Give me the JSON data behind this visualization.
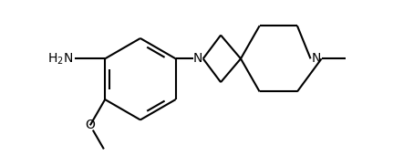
{
  "background_color": "#ffffff",
  "line_color": "#000000",
  "line_width": 1.5,
  "font_size": 10,
  "figsize": [
    4.54,
    1.82
  ],
  "dpi": 100,
  "xlim": [
    -1.3,
    3.0
  ],
  "ylim": [
    -1.1,
    1.0
  ]
}
